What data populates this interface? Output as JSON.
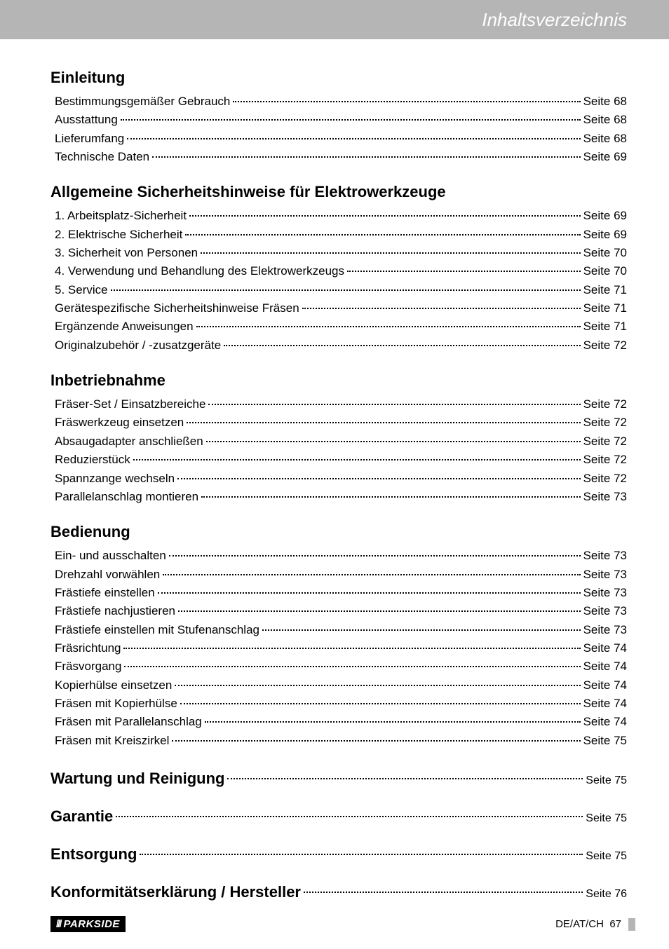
{
  "header": {
    "title": "Inhaltsverzeichnis"
  },
  "page_word": "Seite",
  "sections": [
    {
      "heading": "Einleitung",
      "items": [
        {
          "label": "Bestimmungsgemäßer Gebrauch",
          "page": "68"
        },
        {
          "label": "Ausstattung",
          "page": "68"
        },
        {
          "label": "Lieferumfang",
          "page": "68"
        },
        {
          "label": "Technische Daten",
          "page": "69"
        }
      ]
    },
    {
      "heading": "Allgemeine Sicherheitshinweise für Elektrowerkzeuge",
      "items": [
        {
          "label": "1. Arbeitsplatz-Sicherheit",
          "page": "69"
        },
        {
          "label": "2. Elektrische Sicherheit",
          "page": "69"
        },
        {
          "label": "3. Sicherheit von Personen",
          "page": "70"
        },
        {
          "label": "4. Verwendung und Behandlung des Elektrowerkzeugs",
          "page": "70"
        },
        {
          "label": "5. Service",
          "page": "71"
        },
        {
          "label": "Gerätespezifische Sicherheitshinweise Fräsen",
          "page": "71"
        },
        {
          "label": "Ergänzende Anweisungen",
          "page": "71"
        },
        {
          "label": "Originalzubehör / -zusatzgeräte",
          "page": "72"
        }
      ]
    },
    {
      "heading": "Inbetriebnahme",
      "items": [
        {
          "label": "Fräser-Set / Einsatzbereiche",
          "page": "72"
        },
        {
          "label": "Fräswerkzeug einsetzen",
          "page": "72"
        },
        {
          "label": "Absaugadapter anschließen",
          "page": "72"
        },
        {
          "label": "Reduzierstück",
          "page": "72"
        },
        {
          "label": "Spannzange wechseln",
          "page": "72"
        },
        {
          "label": "Parallelanschlag montieren",
          "page": "73"
        }
      ]
    },
    {
      "heading": "Bedienung",
      "items": [
        {
          "label": "Ein- und ausschalten",
          "page": "73"
        },
        {
          "label": "Drehzahl vorwählen",
          "page": "73"
        },
        {
          "label": "Frästiefe einstellen",
          "page": "73"
        },
        {
          "label": "Frästiefe nachjustieren",
          "page": "73"
        },
        {
          "label": "Frästiefe einstellen mit Stufenanschlag",
          "page": "73"
        },
        {
          "label": "Fräsrichtung",
          "page": "74"
        },
        {
          "label": "Fräsvorgang",
          "page": "74"
        },
        {
          "label": "Kopierhülse einsetzen",
          "page": "74"
        },
        {
          "label": "Fräsen mit Kopierhülse",
          "page": "74"
        },
        {
          "label": "Fräsen mit Parallelanschlag",
          "page": "74"
        },
        {
          "label": "Fräsen mit Kreiszirkel",
          "page": "75"
        }
      ]
    }
  ],
  "heading_lines": [
    {
      "label": "Wartung und Reinigung",
      "page": "75"
    },
    {
      "label": "Garantie",
      "page": "75"
    },
    {
      "label": "Entsorgung",
      "page": "75"
    },
    {
      "label": "Konformitätserklärung / Hersteller",
      "page": "76"
    }
  ],
  "footer": {
    "logo_text": "PARKSIDE",
    "region": "DE/AT/CH",
    "page_num": "67"
  }
}
